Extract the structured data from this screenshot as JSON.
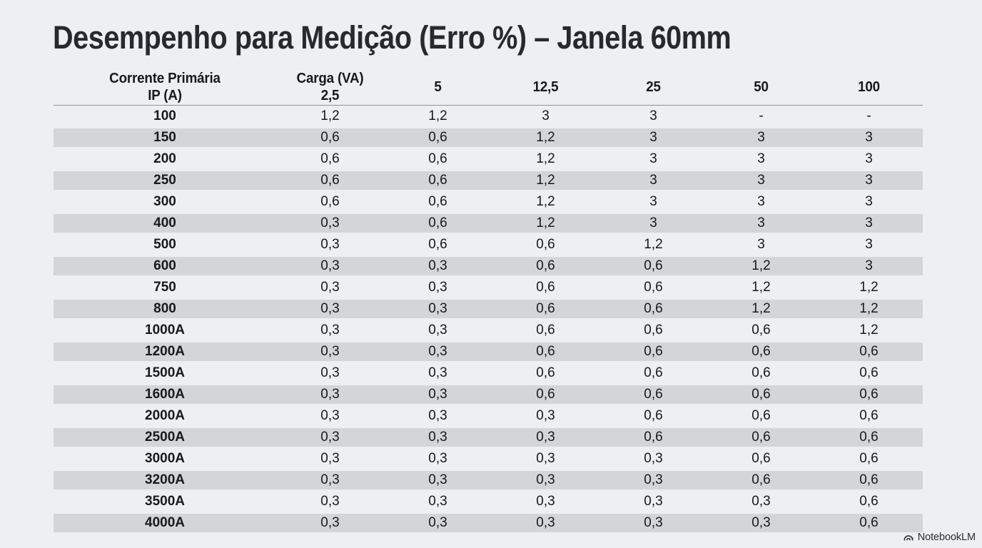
{
  "title": "Desempenho para Medição (Erro %) – Janela 60mm",
  "table": {
    "header": {
      "col1_line1": "Corrente Primária",
      "col1_line2": "IP (A)",
      "col2_line1": "Carga (VA)",
      "col2_line2": "2,5",
      "burden_cols": [
        "5",
        "12,5",
        "25",
        "50",
        "100"
      ]
    },
    "rows": [
      {
        "label": "100",
        "values": [
          "1,2",
          "1,2",
          "3",
          "3",
          "-",
          "-"
        ]
      },
      {
        "label": "150",
        "values": [
          "0,6",
          "0,6",
          "1,2",
          "3",
          "3",
          "3"
        ]
      },
      {
        "label": "200",
        "values": [
          "0,6",
          "0,6",
          "1,2",
          "3",
          "3",
          "3"
        ]
      },
      {
        "label": "250",
        "values": [
          "0,6",
          "0,6",
          "1,2",
          "3",
          "3",
          "3"
        ]
      },
      {
        "label": "300",
        "values": [
          "0,6",
          "0,6",
          "1,2",
          "3",
          "3",
          "3"
        ]
      },
      {
        "label": "400",
        "values": [
          "0,3",
          "0,6",
          "1,2",
          "3",
          "3",
          "3"
        ]
      },
      {
        "label": "500",
        "values": [
          "0,3",
          "0,6",
          "0,6",
          "1,2",
          "3",
          "3"
        ]
      },
      {
        "label": "600",
        "values": [
          "0,3",
          "0,3",
          "0,6",
          "0,6",
          "1,2",
          "3"
        ]
      },
      {
        "label": "750",
        "values": [
          "0,3",
          "0,3",
          "0,6",
          "0,6",
          "1,2",
          "1,2"
        ]
      },
      {
        "label": "800",
        "values": [
          "0,3",
          "0,3",
          "0,6",
          "0,6",
          "1,2",
          "1,2"
        ]
      },
      {
        "label": "1000A",
        "values": [
          "0,3",
          "0,3",
          "0,6",
          "0,6",
          "0,6",
          "1,2"
        ]
      },
      {
        "label": "1200A",
        "values": [
          "0,3",
          "0,3",
          "0,6",
          "0,6",
          "0,6",
          "0,6"
        ]
      },
      {
        "label": "1500A",
        "values": [
          "0,3",
          "0,3",
          "0,6",
          "0,6",
          "0,6",
          "0,6"
        ]
      },
      {
        "label": "1600A",
        "values": [
          "0,3",
          "0,3",
          "0,6",
          "0,6",
          "0,6",
          "0,6"
        ]
      },
      {
        "label": "2000A",
        "values": [
          "0,3",
          "0,3",
          "0,3",
          "0,6",
          "0,6",
          "0,6"
        ]
      },
      {
        "label": "2500A",
        "values": [
          "0,3",
          "0,3",
          "0,3",
          "0,6",
          "0,6",
          "0,6"
        ]
      },
      {
        "label": "3000A",
        "values": [
          "0,3",
          "0,3",
          "0,3",
          "0,3",
          "0,6",
          "0,6"
        ]
      },
      {
        "label": "3200A",
        "values": [
          "0,3",
          "0,3",
          "0,3",
          "0,3",
          "0,6",
          "0,6"
        ]
      },
      {
        "label": "3500A",
        "values": [
          "0,3",
          "0,3",
          "0,3",
          "0,3",
          "0,3",
          "0,6"
        ]
      },
      {
        "label": "4000A",
        "values": [
          "0,3",
          "0,3",
          "0,3",
          "0,3",
          "0,3",
          "0,6"
        ]
      }
    ]
  },
  "watermark": {
    "label": "NotebookLM"
  },
  "colors": {
    "background": "#edeff2",
    "stripe": "#d3d5d8",
    "text": "#17191c",
    "title": "#26292e",
    "divider": "#8f9296",
    "watermark": "#2c2e31"
  }
}
